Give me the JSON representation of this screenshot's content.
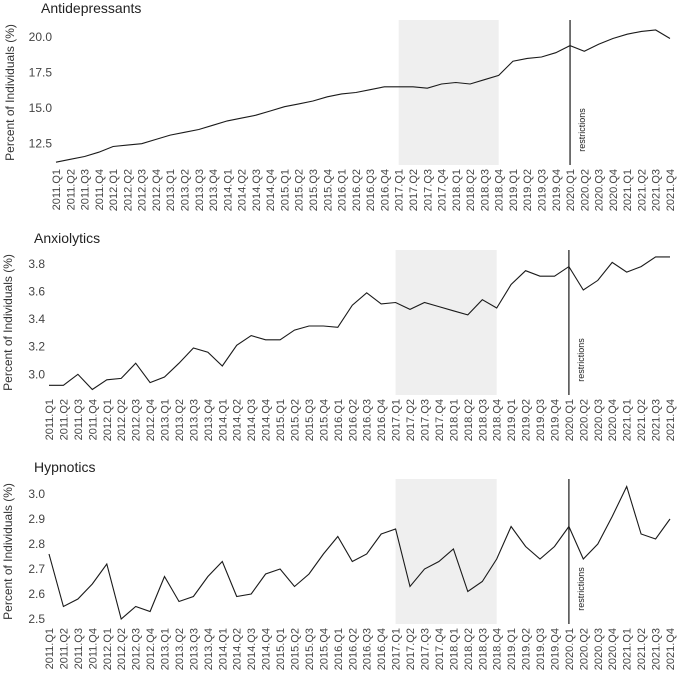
{
  "page": {
    "background": "#ffffff",
    "line_color": "#1a1a1a",
    "shade_color": "#efefef"
  },
  "chart_data": [
    {
      "type": "line",
      "title": "Antidepressants",
      "ylabel": "Percent of Individuals (%)",
      "ylim": [
        11.0,
        21.2
      ],
      "yticks": [
        12.5,
        15.0,
        17.5,
        20.0
      ],
      "ytick_labels": [
        "12.5",
        "15.0",
        "17.5",
        "20.0"
      ],
      "shaded_range": [
        "2017.Q1",
        "2018.Q4"
      ],
      "vline_at": "2020.Q1",
      "annotation": "restrictions",
      "x": [
        "2011.Q1",
        "2011.Q2",
        "2011.Q3",
        "2011.Q4",
        "2012.Q1",
        "2012.Q2",
        "2012.Q3",
        "2012.Q4",
        "2013.Q1",
        "2013.Q2",
        "2013.Q3",
        "2013.Q4",
        "2014.Q1",
        "2014.Q2",
        "2014.Q3",
        "2014.Q4",
        "2015.Q1",
        "2015.Q2",
        "2015.Q3",
        "2015.Q4",
        "2016.Q1",
        "2016.Q2",
        "2016.Q3",
        "2016.Q4",
        "2017.Q1",
        "2017.Q2",
        "2017.Q3",
        "2017.Q4",
        "2018.Q1",
        "2018.Q2",
        "2018.Q3",
        "2018.Q4",
        "2019.Q1",
        "2019.Q2",
        "2019.Q3",
        "2019.Q4",
        "2020.Q1",
        "2020.Q2",
        "2020.Q3",
        "2020.Q4",
        "2021.Q1",
        "2021.Q2",
        "2021.Q3",
        "2021.Q4"
      ],
      "values": [
        11.2,
        11.4,
        11.6,
        11.9,
        12.3,
        12.4,
        12.5,
        12.8,
        13.1,
        13.3,
        13.5,
        13.8,
        14.1,
        14.3,
        14.5,
        14.8,
        15.1,
        15.3,
        15.5,
        15.8,
        16.0,
        16.1,
        16.3,
        16.5,
        16.5,
        16.5,
        16.4,
        16.7,
        16.8,
        16.7,
        17.0,
        17.3,
        18.3,
        18.5,
        18.6,
        18.9,
        19.4,
        19.0,
        19.5,
        19.9,
        20.2,
        20.4,
        20.5,
        19.9
      ]
    },
    {
      "type": "line",
      "title": "Anxiolytics",
      "ylabel": "Percent of Individuals (%)",
      "ylim": [
        2.85,
        3.9
      ],
      "yticks": [
        3.0,
        3.2,
        3.4,
        3.6,
        3.8
      ],
      "ytick_labels": [
        "3.0",
        "3.2",
        "3.4",
        "3.6",
        "3.8"
      ],
      "shaded_range": [
        "2017.Q1",
        "2018.Q4"
      ],
      "vline_at": "2020.Q1",
      "annotation": "restrictions",
      "x": [
        "2011.Q1",
        "2011.Q2",
        "2011.Q3",
        "2011.Q4",
        "2012.Q1",
        "2012.Q2",
        "2012.Q3",
        "2012.Q4",
        "2013.Q1",
        "2013.Q2",
        "2013.Q3",
        "2013.Q4",
        "2014.Q1",
        "2014.Q2",
        "2014.Q3",
        "2014.Q4",
        "2015.Q1",
        "2015.Q2",
        "2015.Q3",
        "2015.Q4",
        "2016.Q1",
        "2016.Q2",
        "2016.Q3",
        "2016.Q4",
        "2017.Q1",
        "2017.Q2",
        "2017.Q3",
        "2017.Q4",
        "2018.Q1",
        "2018.Q2",
        "2018.Q3",
        "2018.Q4",
        "2019.Q1",
        "2019.Q2",
        "2019.Q3",
        "2019.Q4",
        "2020.Q1",
        "2020.Q2",
        "2020.Q3",
        "2020.Q4",
        "2021.Q1",
        "2021.Q2",
        "2021.Q3",
        "2021.Q4"
      ],
      "values": [
        2.92,
        2.92,
        3.0,
        2.89,
        2.96,
        2.97,
        3.08,
        2.94,
        2.98,
        3.08,
        3.19,
        3.16,
        3.06,
        3.21,
        3.28,
        3.25,
        3.25,
        3.32,
        3.35,
        3.35,
        3.34,
        3.5,
        3.59,
        3.51,
        3.52,
        3.47,
        3.52,
        3.49,
        3.46,
        3.43,
        3.54,
        3.48,
        3.65,
        3.75,
        3.71,
        3.71,
        3.78,
        3.61,
        3.68,
        3.81,
        3.74,
        3.78,
        3.85,
        3.85
      ]
    },
    {
      "type": "line",
      "title": "Hypnotics",
      "ylabel": "Percent of Individuals (%)",
      "ylim": [
        2.48,
        3.06
      ],
      "yticks": [
        2.5,
        2.6,
        2.7,
        2.8,
        2.9,
        3.0
      ],
      "ytick_labels": [
        "2.5",
        "2.6",
        "2.7",
        "2.8",
        "2.9",
        "3.0"
      ],
      "shaded_range": [
        "2017.Q1",
        "2018.Q4"
      ],
      "vline_at": "2020.Q1",
      "annotation": "restrictions",
      "x": [
        "2011.Q1",
        "2011.Q2",
        "2011.Q3",
        "2011.Q4",
        "2012.Q1",
        "2012.Q2",
        "2012.Q3",
        "2012.Q4",
        "2013.Q1",
        "2013.Q2",
        "2013.Q3",
        "2013.Q4",
        "2014.Q1",
        "2014.Q2",
        "2014.Q3",
        "2014.Q4",
        "2015.Q1",
        "2015.Q2",
        "2015.Q3",
        "2015.Q4",
        "2016.Q1",
        "2016.Q2",
        "2016.Q3",
        "2016.Q4",
        "2017.Q1",
        "2017.Q2",
        "2017.Q3",
        "2017.Q4",
        "2018.Q1",
        "2018.Q2",
        "2018.Q3",
        "2018.Q4",
        "2019.Q1",
        "2019.Q2",
        "2019.Q3",
        "2019.Q4",
        "2020.Q1",
        "2020.Q2",
        "2020.Q3",
        "2020.Q4",
        "2021.Q1",
        "2021.Q2",
        "2021.Q3",
        "2021.Q4"
      ],
      "values": [
        2.76,
        2.55,
        2.58,
        2.64,
        2.72,
        2.5,
        2.55,
        2.53,
        2.67,
        2.57,
        2.59,
        2.67,
        2.73,
        2.59,
        2.6,
        2.68,
        2.7,
        2.63,
        2.68,
        2.76,
        2.83,
        2.73,
        2.76,
        2.84,
        2.86,
        2.63,
        2.7,
        2.73,
        2.78,
        2.61,
        2.65,
        2.74,
        2.87,
        2.79,
        2.74,
        2.79,
        2.87,
        2.74,
        2.8,
        2.91,
        3.03,
        2.84,
        2.82,
        2.9
      ]
    }
  ]
}
